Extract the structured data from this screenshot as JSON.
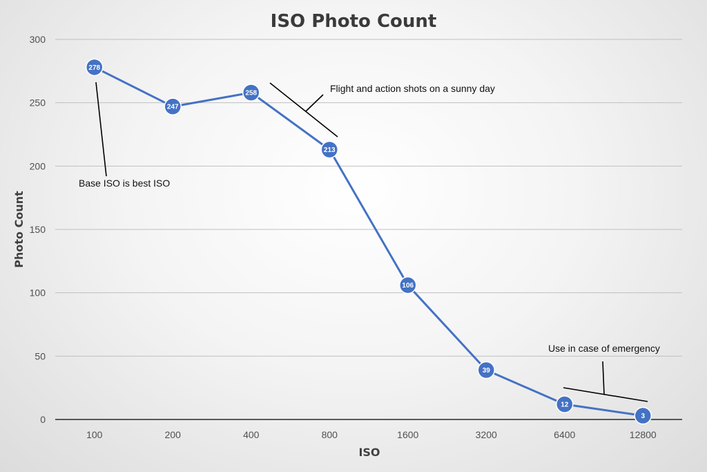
{
  "chart_data": {
    "type": "line",
    "title": "ISO Photo Count",
    "xlabel": "ISO",
    "ylabel": "Photo Count",
    "categories": [
      "100",
      "200",
      "400",
      "800",
      "1600",
      "3200",
      "6400",
      "12800"
    ],
    "series": [
      {
        "values": [
          278,
          247,
          258,
          213,
          106,
          39,
          12,
          3
        ],
        "color": "#4472c4"
      }
    ],
    "ylim": [
      0,
      300
    ],
    "yticks": [
      0,
      50,
      100,
      150,
      200,
      250,
      300
    ],
    "grid": true,
    "legend": "none",
    "annotations": [
      {
        "text": "Base ISO is best ISO",
        "target_category": "100"
      },
      {
        "text": "Flight and action shots on a sunny day",
        "target_segment": [
          "400",
          "800"
        ]
      },
      {
        "text": "Use in case of emergency",
        "target_segment": [
          "6400",
          "12800"
        ]
      }
    ]
  }
}
